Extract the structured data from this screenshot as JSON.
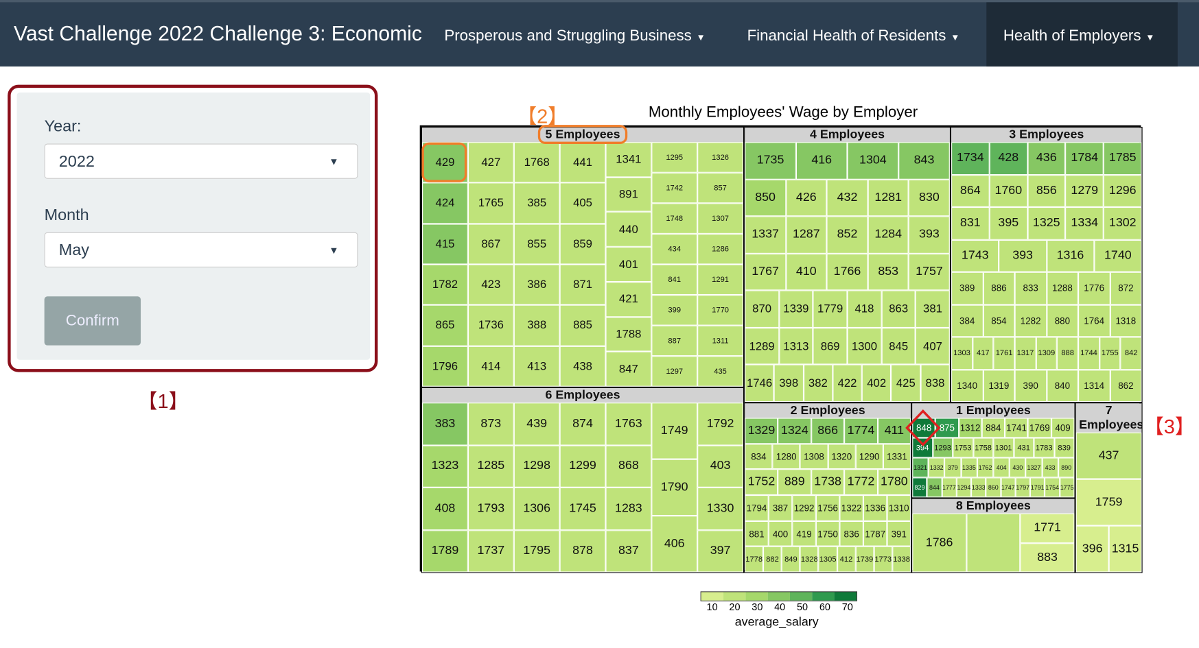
{
  "navbar": {
    "brand": "Vast Challenge 2022 Challenge 3: Economic",
    "menus": [
      "Prosperous and Struggling Business",
      "Financial Health of Residents",
      "Health of Employers"
    ]
  },
  "panel": {
    "year_label": "Year:",
    "year_value": "2022",
    "month_label": "Month",
    "month_value": "May",
    "confirm": "Confirm"
  },
  "annotations": [
    "【1】",
    "【2】",
    "【3】"
  ],
  "chart_data": {
    "type": "treemap",
    "title": "Monthly Employees' Wage by Employer",
    "legend_title": "average_salary",
    "legend_ticks": [
      "10",
      "20",
      "30",
      "40",
      "50",
      "60",
      "70"
    ],
    "palette": [
      "#d7ee8e",
      "#bfe37a",
      "#a6d86b",
      "#86c763",
      "#5fb45b",
      "#2f9a4e",
      "#0f7a3a"
    ],
    "groups": [
      {
        "id": "g5",
        "label": "5 Employees",
        "layout": "cols",
        "level": 1,
        "lines": [
          [
            "429",
            "424",
            "415",
            "1782",
            "865",
            "1796"
          ],
          [
            "427",
            "1765",
            "867",
            "423",
            "1736",
            "414"
          ],
          [
            "1768",
            "385",
            "855",
            "386",
            "388",
            "413"
          ],
          [
            "441",
            "405",
            "859",
            "871",
            "885",
            "438"
          ],
          [
            "1341",
            "891",
            "440",
            "401",
            "421",
            "1788",
            "847"
          ],
          [
            "1295",
            "1742",
            "1748",
            "434",
            "841",
            "399",
            "887",
            "1297"
          ],
          [
            "1326",
            "857",
            "1307",
            "1286",
            "1291",
            "1770",
            "1311",
            "435"
          ]
        ]
      },
      {
        "id": "g6",
        "label": "6 Employees",
        "layout": "cols",
        "level": 1,
        "lines": [
          [
            "383",
            "1323",
            "408",
            "1789"
          ],
          [
            "873",
            "1285",
            "1793",
            "1737"
          ],
          [
            "439",
            "1298",
            "1306",
            "1795"
          ],
          [
            "874",
            "1299",
            "1745",
            "878"
          ],
          [
            "1763",
            "868",
            "1283",
            "837"
          ],
          [
            "1749",
            "1790",
            "406"
          ],
          [
            "1792",
            "403",
            "1330",
            "397"
          ]
        ]
      },
      {
        "id": "g4",
        "label": "4 Employees",
        "layout": "rows",
        "level": 1,
        "lines": [
          [
            "1735",
            "416",
            "1304",
            "843"
          ],
          [
            "850",
            "426",
            "432",
            "1281",
            "830"
          ],
          [
            "1337",
            "1287",
            "852",
            "1284",
            "393"
          ],
          [
            "1767",
            "410",
            "1766",
            "853",
            "1757"
          ],
          [
            "870",
            "1339",
            "1779",
            "418",
            "863",
            "381"
          ],
          [
            "1289",
            "1313",
            "869",
            "1300",
            "845",
            "407"
          ],
          [
            "1746",
            "398",
            "382",
            "422",
            "402",
            "425",
            "838"
          ]
        ]
      },
      {
        "id": "g3",
        "label": "3 Employees",
        "layout": "rows",
        "level": 1,
        "lines": [
          [
            "1734",
            "428",
            "436",
            "1784",
            "1785"
          ],
          [
            "864",
            "1760",
            "856",
            "1279",
            "1296"
          ],
          [
            "831",
            "395",
            "1325",
            "1334",
            "1302"
          ],
          [
            "1743",
            "393",
            "1316",
            "1740"
          ],
          [
            "389",
            "886",
            "833",
            "1288",
            "1776",
            "872"
          ],
          [
            "384",
            "854",
            "1282",
            "880",
            "1764",
            "1318"
          ],
          [
            "1303",
            "417",
            "1761",
            "1317",
            "1309",
            "888",
            "1744",
            "1755",
            "842"
          ],
          [
            "1340",
            "1319",
            "390",
            "840",
            "1314",
            "862"
          ]
        ]
      },
      {
        "id": "g2",
        "label": "2 Employees",
        "layout": "rows",
        "level": 1,
        "lines": [
          [
            "1329",
            "1324",
            "866",
            "1774",
            "411"
          ],
          [
            "834",
            "1280",
            "1308",
            "1320",
            "1290",
            "1331"
          ],
          [
            "1752",
            "889",
            "1738",
            "1772",
            "1780"
          ],
          [
            "1794",
            "387",
            "1292",
            "1756",
            "1322",
            "1336",
            "1310"
          ],
          [
            "881",
            "400",
            "419",
            "1750",
            "836",
            "1787",
            "391"
          ],
          [
            "1778",
            "882",
            "849",
            "1328",
            "1305",
            "412",
            "1739",
            "1773",
            "1338"
          ]
        ]
      },
      {
        "id": "g1",
        "label": "1 Employees",
        "layout": "rows",
        "level": 1,
        "lines": [
          [
            "848",
            "875",
            "1312",
            "884",
            "1741",
            "1769",
            "409"
          ],
          [
            "394",
            "1293",
            "1753",
            "1758",
            "1301",
            "431",
            "1783",
            "839"
          ],
          [
            "1321",
            "1332",
            "379",
            "1335",
            "1762",
            "404",
            "430",
            "1327",
            "433",
            "890"
          ],
          [
            "829",
            "844",
            "1777",
            "1294",
            "1333",
            "860",
            "1747",
            "1797",
            "1791",
            "1754",
            "1775"
          ]
        ]
      },
      {
        "id": "g8",
        "label": "8 Employees",
        "layout": "cols",
        "level": 1,
        "lines": [
          [
            "1786"
          ],
          [
            ""
          ],
          [
            "1771",
            "883"
          ]
        ]
      },
      {
        "id": "g7",
        "label": "7 Employees",
        "layout": "rows",
        "level": 1,
        "lines": [
          [
            "437"
          ],
          [
            "1759"
          ],
          [
            "396",
            "1315"
          ]
        ]
      }
    ],
    "salary_level": {
      "429": 3,
      "424": 3,
      "415": 3,
      "1782": 2,
      "865": 2,
      "1796": 2,
      "383": 3,
      "1323": 2,
      "408": 2,
      "1789": 2,
      "1735": 3,
      "416": 3,
      "1304": 3,
      "843": 3,
      "850": 2,
      "1734": 4,
      "428": 4,
      "436": 3,
      "1784": 3,
      "1785": 3,
      "1329": 3,
      "1324": 3,
      "866": 3,
      "1774": 3,
      "411": 3,
      "848": 6,
      "394": 6,
      "829": 6,
      "875": 5,
      "1312": 2,
      "1321": 4,
      "1293": 3,
      "844": 3,
      "437": 1,
      "1759": 0,
      "396": 0,
      "1315": 0,
      "1786": 1,
      "1771": 0,
      "883": 0,
      "": 1
    },
    "highlight": "848"
  }
}
